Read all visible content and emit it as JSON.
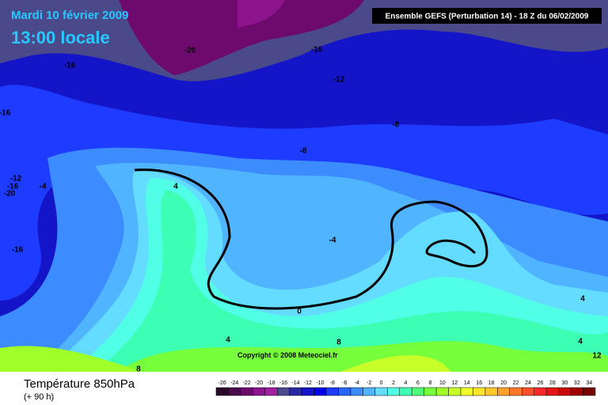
{
  "header": {
    "date": "Mardi 10 février 2009",
    "time": "13:00 locale",
    "run": "Ensemble GEFS (Perturbation 14)  -  18 Z du 06/02/2009"
  },
  "map": {
    "copyright": "Copyright © 2008 Meteociel.fr",
    "contour_labels": [
      -20,
      -16,
      -16,
      -12,
      -16,
      -8,
      -8,
      -4,
      -12,
      -16,
      -20,
      4,
      -4,
      -16,
      0,
      4,
      8,
      8,
      4,
      4,
      12
    ]
  },
  "footer": {
    "title": "Température 850hPa",
    "subtitle": "(+ 90 h)"
  },
  "legend": {
    "levels": [
      -26,
      -24,
      -22,
      -20,
      -18,
      -16,
      -14,
      -12,
      -10,
      -8,
      -6,
      -4,
      -2,
      0,
      2,
      4,
      6,
      8,
      10,
      12,
      14,
      16,
      18,
      20,
      22,
      24,
      26,
      28,
      30,
      32,
      34
    ],
    "colors": [
      "#2a0a2a",
      "#4b0a4b",
      "#6e0a6e",
      "#8c148c",
      "#a01ea0",
      "#4a4a8a",
      "#2828a0",
      "#1414c8",
      "#0000e6",
      "#1e3cff",
      "#2864ff",
      "#3c8cff",
      "#50b4ff",
      "#64dcff",
      "#50ffe6",
      "#3cffb4",
      "#50ff78",
      "#78ff3c",
      "#a0ff28",
      "#c8ff28",
      "#f0ff28",
      "#ffe628",
      "#ffc828",
      "#ffa028",
      "#ff7828",
      "#ff5028",
      "#ff2828",
      "#e61414",
      "#c80a0a",
      "#a00000",
      "#780000"
    ]
  }
}
